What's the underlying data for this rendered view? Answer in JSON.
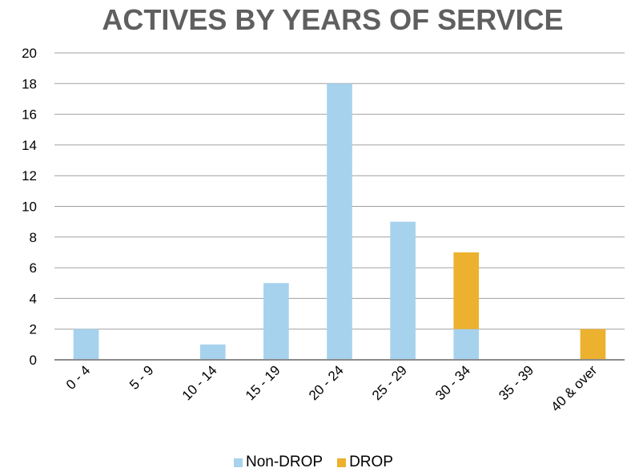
{
  "chart_data": {
    "type": "bar",
    "stacked": true,
    "title": "ACTIVES BY YEARS OF SERVICE",
    "categories": [
      "0 - 4",
      "5 - 9",
      "10 - 14",
      "15 - 19",
      "20 - 24",
      "25 - 29",
      "30 - 34",
      "35 - 39",
      "40 & over"
    ],
    "series": [
      {
        "name": "Non-DROP",
        "color": "#a6d2ee",
        "values": [
          2,
          0,
          1,
          5,
          18,
          9,
          2,
          0,
          0
        ]
      },
      {
        "name": "DROP",
        "color": "#ecb12e",
        "values": [
          0,
          0,
          0,
          0,
          0,
          0,
          5,
          0,
          2
        ]
      }
    ],
    "ylim": [
      0,
      20
    ],
    "yticks": [
      "0",
      "2",
      "4",
      "6",
      "8",
      "10",
      "12",
      "14",
      "16",
      "18",
      "20"
    ],
    "xlabel": "",
    "ylabel": "",
    "grid": true,
    "legend_position": "bottom"
  }
}
